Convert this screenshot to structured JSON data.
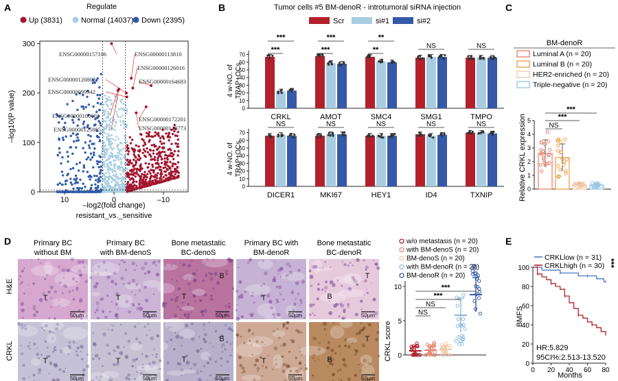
{
  "colors": {
    "up": "#a3162f",
    "normal": "#a9cfe2",
    "down": "#2f5ba8",
    "scr": "#b3202c",
    "si1": "#a9cde0",
    "si2": "#3559a8",
    "lumA": "#e8836c",
    "lumB": "#eda24a",
    "her2": "#f2c7a7",
    "tn": "#9cc7e0",
    "crkl_low": "#4a7cc0",
    "crkl_high": "#b3202c"
  },
  "panelA": {
    "letter": "A",
    "legend_title": "Regulate",
    "legend": [
      {
        "label": "Up (3831)",
        "color": "#a3162f"
      },
      {
        "label": "Normal (14037)",
        "color": "#a9cfe2"
      },
      {
        "label": "Down (2395)",
        "color": "#2f5ba8"
      }
    ],
    "ylabel": "–log10(P value)",
    "xlabel1": "–log2(fold change)",
    "xlabel2": "resistant_vs._sensitive",
    "yticks": [
      "0",
      "100",
      "200",
      "300"
    ],
    "xticks": [
      "10",
      "0",
      "–10"
    ],
    "genes": [
      "ENSG00000157106",
      "ENSG00000113810",
      "ENSG00000126016",
      "ENSG00000120802",
      "ENSG00000164683",
      "ENSG00000099942",
      "ENSG00000100603",
      "ENSG00000172201",
      "ENSG00000125885",
      "ENSG00000148773"
    ]
  },
  "panelB": {
    "letter": "B",
    "title": "Tumor cells #5 BM-denoR - introtumoral siRNA injection",
    "legend": [
      {
        "label": "Scr",
        "color": "#b3202c"
      },
      {
        "label": "si#1",
        "color": "#a9cde0"
      },
      {
        "label": "si#2",
        "color": "#3559a8"
      }
    ],
    "ylabel1": "4 w-NO. of",
    "ylabel2": "TRAP+OCs",
    "yticks": [
      "0",
      "10",
      "20",
      "30",
      "40",
      "50",
      "60",
      "70"
    ]
  },
  "panelC": {
    "letter": "C",
    "legend_title": "BM-denoR",
    "legend": [
      {
        "label": "Luminal A (n = 20)",
        "color": "#e8836c"
      },
      {
        "label": "Luminal B (n = 20)",
        "color": "#eda24a"
      },
      {
        "label": "HER2-enriched (n = 20)",
        "color": "#f2c7a7"
      },
      {
        "label": "Triple-negative (n = 20)",
        "color": "#9cc7e0"
      }
    ],
    "ylabel": "Relative CRKL expression",
    "yticks": [
      "0",
      "1",
      "2",
      "3",
      "4",
      "5"
    ]
  },
  "panelD": {
    "letter": "D",
    "col_titles": [
      [
        "Primary BC",
        "without BM"
      ],
      [
        "Primary BC",
        "with BM-denoS"
      ],
      [
        "Bone metastatic",
        "BC-denoS"
      ],
      [
        "Primary BC with",
        "BM-denoR"
      ],
      [
        "Bone metastatic",
        "BC-denoR"
      ]
    ],
    "row_labels": [
      "H&E",
      "CRKL"
    ],
    "scale": "50μm",
    "he_marks": [
      [
        "T"
      ],
      [
        "T"
      ],
      [
        "T",
        "B"
      ],
      [
        "T"
      ],
      [
        "B",
        "T"
      ]
    ],
    "crkl_marks": [
      [
        "T"
      ],
      [
        "T"
      ],
      [
        "T",
        "B"
      ],
      [
        "T"
      ],
      [
        "B",
        "T"
      ]
    ],
    "legend": [
      {
        "label": "w/o metastasis (n = 20)",
        "color": "#b3202c"
      },
      {
        "label": "with BM-denoS (n = 20)",
        "color": "#e8836c"
      },
      {
        "label": "BM-denoS (n = 20)",
        "color": "#f2c7a7"
      },
      {
        "label": "with BM-denoR (n = 20)",
        "color": "#8ab8dc"
      },
      {
        "label": "BM-denoR (n = 20)",
        "color": "#3559a8"
      }
    ],
    "ylabel": "CRKL score",
    "yticks": [
      "0",
      "5",
      "10"
    ]
  },
  "panelE": {
    "letter": "E",
    "legend": [
      {
        "label": "CRKLlow (n = 31)",
        "color": "#4a7cc0"
      },
      {
        "label": "CRKLhigh (n = 30)",
        "color": "#b3202c"
      }
    ],
    "sig": "***",
    "ylabel": "BMFS",
    "xlabel": "Months",
    "hr": "HR:5.829",
    "ci": "95CI%:2.513-13.520",
    "yticks": [
      "0",
      "20",
      "40",
      "60",
      "80",
      "100"
    ],
    "xticks": [
      "0",
      "20",
      "40",
      "60",
      "80"
    ]
  },
  "chart_data": [
    {
      "type": "scatter",
      "panel": "A",
      "title": "",
      "xlabel": "–log2(fold change) resistant_vs._sensitive",
      "ylabel": "–log10(P value)",
      "xlim": [
        15,
        -15
      ],
      "ylim": [
        0,
        305
      ],
      "series": [
        {
          "name": "Up (3831)",
          "count": 3831
        },
        {
          "name": "Normal (14037)",
          "count": 14037
        },
        {
          "name": "Down (2395)",
          "count": 2395
        }
      ],
      "labeled_points": [
        {
          "label": "ENSG00000157106",
          "x": 0.5,
          "y": 300
        },
        {
          "label": "ENSG00000113810",
          "x": -3.5,
          "y": 230
        },
        {
          "label": "ENSG00000126016",
          "x": -3.8,
          "y": 210
        },
        {
          "label": "ENSG00000120802",
          "x": -2.5,
          "y": 200
        },
        {
          "label": "ENSG00000164683",
          "x": -7.5,
          "y": 215
        },
        {
          "label": "ENSG00000099942",
          "x": -2.6,
          "y": 192
        },
        {
          "label": "ENSG00000100603",
          "x": -0.8,
          "y": 205
        },
        {
          "label": "ENSG00000172201",
          "x": -6.5,
          "y": 172
        },
        {
          "label": "ENSG00000125885",
          "x": -1.0,
          "y": 208
        },
        {
          "label": "ENSG00000148773",
          "x": -4.5,
          "y": 160
        }
      ]
    },
    {
      "type": "bar",
      "panel": "B",
      "title": "Tumor cells #5 BM-denoR - introtumoral siRNA injection",
      "ylabel": "4 w-NO. of TRAP+OCs",
      "ylim": [
        0,
        75
      ],
      "categories": [
        "CRKL",
        "AMOT",
        "SMC4",
        "SMG1",
        "TMPO",
        "DICER1",
        "MKI67",
        "HEY1",
        "ID4",
        "TXNIP"
      ],
      "series": [
        {
          "name": "Scr",
          "values": [
            67,
            68,
            67,
            66,
            66,
            66,
            66,
            66,
            68,
            70
          ]
        },
        {
          "name": "si#1",
          "values": [
            22,
            59,
            61,
            67,
            66,
            67,
            68,
            66,
            66,
            70
          ]
        },
        {
          "name": "si#2",
          "values": [
            23,
            58,
            60,
            67,
            66,
            66,
            68,
            66,
            67,
            69
          ]
        }
      ],
      "significance": [
        {
          "category": "CRKL",
          "labels": [
            "***",
            "***"
          ]
        },
        {
          "category": "AMOT",
          "labels": [
            "***",
            "***"
          ]
        },
        {
          "category": "SMC4",
          "labels": [
            "**",
            "**"
          ]
        },
        {
          "category": "SMG1",
          "labels": [
            "NS"
          ]
        },
        {
          "category": "TMPO",
          "labels": [
            "NS"
          ]
        },
        {
          "category": "DICER1",
          "labels": [
            "NS"
          ]
        },
        {
          "category": "MKI67",
          "labels": [
            "NS"
          ]
        },
        {
          "category": "HEY1",
          "labels": [
            "NS"
          ]
        },
        {
          "category": "ID4",
          "labels": [
            "NS"
          ]
        },
        {
          "category": "TXNIP",
          "labels": [
            "NS"
          ]
        }
      ]
    },
    {
      "type": "bar",
      "panel": "C",
      "ylabel": "Relative CRKL expression",
      "ylim": [
        0,
        5
      ],
      "categories": [
        "Luminal A",
        "Luminal B",
        "HER2-enriched",
        "Triple-negative"
      ],
      "values": [
        2.6,
        2.3,
        0.3,
        0.3
      ],
      "significance": [
        "NS",
        "***",
        "***"
      ]
    },
    {
      "type": "scatter",
      "panel": "D",
      "ylabel": "CRKL score",
      "ylim": [
        0,
        12
      ],
      "categories": [
        "w/o metastasis",
        "with BM-denoS",
        "BM-denoS",
        "with BM-denoR",
        "BM-denoR"
      ],
      "values": [
        0.6,
        0.7,
        0.8,
        5.8,
        8.8
      ],
      "significance": [
        "NS",
        "NS",
        "***",
        "***"
      ]
    },
    {
      "type": "line",
      "panel": "E",
      "xlabel": "Months",
      "ylabel": "BMFS",
      "xlim": [
        0,
        80
      ],
      "ylim": [
        0,
        100
      ],
      "series": [
        {
          "name": "CRKLlow (n = 31)",
          "x": [
            0,
            5,
            10,
            20,
            30,
            40,
            50,
            60,
            70,
            78,
            80
          ],
          "y": [
            100,
            100,
            97,
            97,
            94,
            94,
            91,
            91,
            88,
            85,
            85
          ]
        },
        {
          "name": "CRKLhigh (n = 30)",
          "x": [
            0,
            5,
            10,
            15,
            20,
            25,
            30,
            35,
            40,
            45,
            50,
            55,
            60,
            65,
            70,
            75,
            80
          ],
          "y": [
            100,
            93,
            90,
            87,
            83,
            80,
            77,
            70,
            63,
            57,
            50,
            47,
            43,
            40,
            37,
            33,
            30
          ]
        }
      ],
      "annotations": [
        "HR:5.829",
        "95CI%:2.513-13.520"
      ]
    }
  ]
}
